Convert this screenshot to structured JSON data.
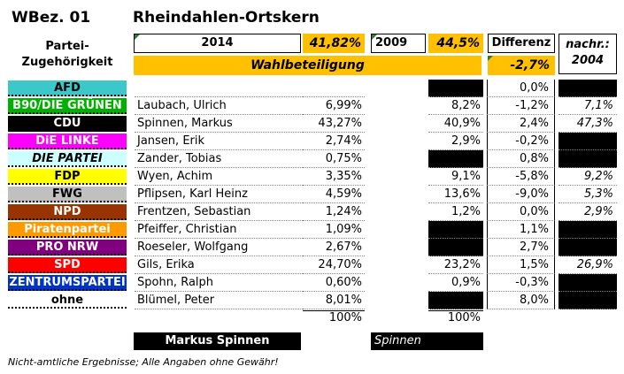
{
  "header": {
    "district": "WBez. 01",
    "name": "Rheindahlen-Ortskern",
    "party_label": "Partei-\nZugehörigkeit",
    "year_current": "2014",
    "pct_current": "41,82%",
    "year_prev": "2009",
    "pct_prev": "44,5%",
    "diff_label": "Differenz",
    "nachr_label": "nachr.:\n2004",
    "turnout_label": "Wahlbeteiligung",
    "turnout_diff": "-2,7%"
  },
  "rows": [
    {
      "party": "AFD",
      "bg": "#3CC8C8",
      "fg": "#000",
      "italic": false,
      "cand": "",
      "p14": "",
      "p09": "",
      "p09_black": true,
      "diff": "0,0%",
      "n04": "",
      "n04_black": true
    },
    {
      "party": "B90/DIE GRÜNEN",
      "bg": "#00B000",
      "fg": "#fff",
      "italic": false,
      "cand": "Laubach, Ulrich",
      "p14": "6,99%",
      "p09": "8,2%",
      "p09_black": false,
      "diff": "-1,2%",
      "n04": "7,1%",
      "n04_black": false
    },
    {
      "party": "CDU",
      "bg": "#000000",
      "fg": "#fff",
      "italic": false,
      "cand": "Spinnen, Markus",
      "p14": "43,27%",
      "p09": "40,9%",
      "p09_black": false,
      "diff": "2,4%",
      "n04": "47,3%",
      "n04_black": false
    },
    {
      "party": "DiE LINKE",
      "bg": "#FF00FF",
      "fg": "#fff",
      "italic": false,
      "cand": "Jansen, Erik",
      "p14": "2,74%",
      "p09": "2,9%",
      "p09_black": false,
      "diff": "-0,2%",
      "n04": "",
      "n04_black": true
    },
    {
      "party": "DIE PARTEI",
      "bg": "#CCFFFF",
      "fg": "#000",
      "italic": true,
      "cand": "Zander, Tobias",
      "p14": "0,75%",
      "p09": "",
      "p09_black": true,
      "diff": "0,8%",
      "n04": "",
      "n04_black": true
    },
    {
      "party": "FDP",
      "bg": "#FFFF00",
      "fg": "#000",
      "italic": false,
      "cand": "Wyen, Achim",
      "p14": "3,35%",
      "p09": "9,1%",
      "p09_black": false,
      "diff": "-5,8%",
      "n04": "9,2%",
      "n04_black": false
    },
    {
      "party": "FWG",
      "bg": "#C0C0C0",
      "fg": "#000",
      "italic": false,
      "cand": "Pflipsen, Karl Heinz",
      "p14": "4,59%",
      "p09": "13,6%",
      "p09_black": false,
      "diff": "-9,0%",
      "n04": "5,3%",
      "n04_black": false
    },
    {
      "party": "NPD",
      "bg": "#993300",
      "fg": "#fff",
      "italic": false,
      "cand": "Frentzen, Sebastian",
      "p14": "1,24%",
      "p09": "1,2%",
      "p09_black": false,
      "diff": "0,0%",
      "n04": "2,9%",
      "n04_black": false
    },
    {
      "party": "Piratenpartei",
      "bg": "#FF9900",
      "fg": "#fff",
      "italic": false,
      "cand": "Pfeiffer, Christian",
      "p14": "1,09%",
      "p09": "",
      "p09_black": true,
      "diff": "1,1%",
      "n04": "",
      "n04_black": true
    },
    {
      "party": "PRO NRW",
      "bg": "#800080",
      "fg": "#fff",
      "italic": false,
      "cand": "Roeseler, Wolfgang",
      "p14": "2,67%",
      "p09": "",
      "p09_black": true,
      "diff": "2,7%",
      "n04": "",
      "n04_black": true
    },
    {
      "party": "SPD",
      "bg": "#FF0000",
      "fg": "#fff",
      "italic": false,
      "cand": "Gils, Erika",
      "p14": "24,70%",
      "p09": "23,2%",
      "p09_black": false,
      "diff": "1,5%",
      "n04": "26,9%",
      "n04_black": false
    },
    {
      "party": "ZENTRUMSPARTEI",
      "bg": "#0033CC",
      "fg": "#fff",
      "italic": false,
      "cand": "Spohn, Ralph",
      "p14": "0,60%",
      "p09": "0,9%",
      "p09_black": false,
      "diff": "-0,3%",
      "n04": "",
      "n04_black": true
    },
    {
      "party": "ohne",
      "bg": "#FFFFFF",
      "fg": "#000",
      "italic": false,
      "cand": "Blümel, Peter",
      "p14": "8,01%",
      "p09": "",
      "p09_black": true,
      "diff": "8,0%",
      "n04": "",
      "n04_black": true
    }
  ],
  "totals": {
    "p14": "100%",
    "p09": "100%"
  },
  "winner_current": "Markus Spinnen",
  "winner_prev": "Spinnen",
  "footer": "Nicht-amtliche Ergebnisse; Alle Angaben ohne Gewähr!"
}
